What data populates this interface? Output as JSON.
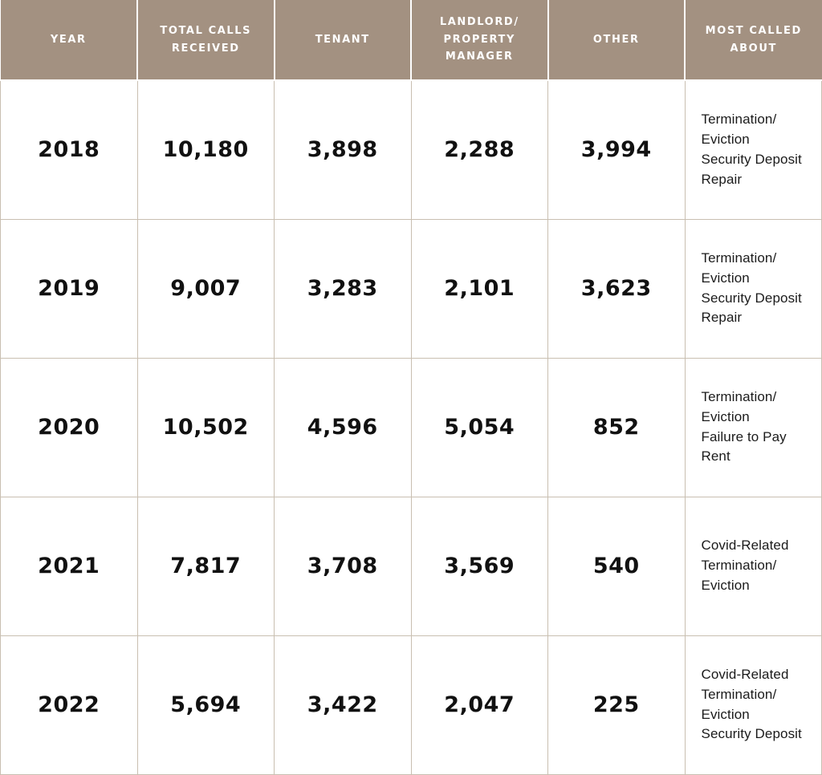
{
  "colors": {
    "header_bg": "#a39181",
    "header_text": "#ffffff",
    "grid_border": "#c9bfb1",
    "body_text": "#111111"
  },
  "table": {
    "headers": [
      {
        "id": "year",
        "label": "YEAR"
      },
      {
        "id": "total_calls",
        "label": "TOTAL CALLS\nRECEIVED"
      },
      {
        "id": "tenant",
        "label": "TENANT"
      },
      {
        "id": "landlord",
        "label": "LANDLORD/\nPROPERTY\nMANAGER"
      },
      {
        "id": "other",
        "label": "OTHER"
      },
      {
        "id": "most_called",
        "label": "MOST CALLED\nABOUT"
      }
    ],
    "rows": [
      {
        "year": "2018",
        "total_calls": "10,180",
        "tenant": "3,898",
        "landlord": "2,288",
        "other": "3,994",
        "most_called": "Termination/\nEviction\nSecurity Deposit\nRepair"
      },
      {
        "year": "2019",
        "total_calls": "9,007",
        "tenant": "3,283",
        "landlord": "2,101",
        "other": "3,623",
        "most_called": "Termination/\nEviction\nSecurity Deposit\nRepair"
      },
      {
        "year": "2020",
        "total_calls": "10,502",
        "tenant": "4,596",
        "landlord": "5,054",
        "other": "852",
        "most_called": "Termination/\nEviction\nFailure to Pay Rent"
      },
      {
        "year": "2021",
        "total_calls": "7,817",
        "tenant": "3,708",
        "landlord": "3,569",
        "other": "540",
        "most_called": "Covid-Related\nTermination/\nEviction"
      },
      {
        "year": "2022",
        "total_calls": "5,694",
        "tenant": "3,422",
        "landlord": "2,047",
        "other": "225",
        "most_called": "Covid-Related\nTermination/\nEviction\nSecurity Deposit"
      }
    ]
  },
  "chart_data": {
    "type": "table",
    "columns": [
      "Year",
      "Total Calls Received",
      "Tenant",
      "Landlord/Property Manager",
      "Other",
      "Most Called About"
    ],
    "rows": [
      [
        "2018",
        10180,
        3898,
        2288,
        3994,
        "Termination/Eviction; Security Deposit; Repair"
      ],
      [
        "2019",
        9007,
        3283,
        2101,
        3623,
        "Termination/Eviction; Security Deposit; Repair"
      ],
      [
        "2020",
        10502,
        4596,
        5054,
        852,
        "Termination/Eviction; Failure to Pay Rent"
      ],
      [
        "2021",
        7817,
        3708,
        3569,
        540,
        "Covid-Related Termination/Eviction"
      ],
      [
        "2022",
        5694,
        3422,
        2047,
        225,
        "Covid-Related Termination/Eviction; Security Deposit"
      ]
    ]
  }
}
